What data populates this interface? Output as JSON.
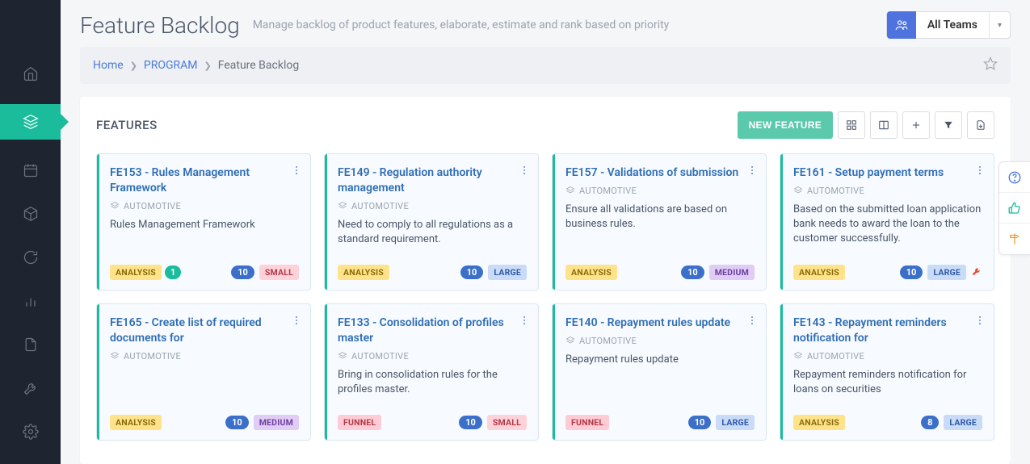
{
  "header": {
    "title": "Feature Backlog",
    "subtitle": "Manage backlog of product features, elaborate, estimate and rank based on priority",
    "team_label": "All Teams"
  },
  "breadcrumb": {
    "home": "Home",
    "program": "PROGRAM",
    "current": "Feature Backlog"
  },
  "panel": {
    "title": "FEATURES",
    "new_button": "NEW FEATURE"
  },
  "colors": {
    "sidebar_bg": "#1e2430",
    "accent": "#1abc9c",
    "link": "#4c7bd9",
    "card_bg": "#f7fbff",
    "card_border": "#d9e6f2"
  },
  "cards": [
    {
      "id": "FE153",
      "title": "FE153 - Rules Management Framework",
      "epic": "AUTOMOTIVE",
      "desc": "Rules Management Framework",
      "stage": "ANALYSIS",
      "stage_style": "analysis",
      "extra_count": "1",
      "count": "10",
      "size": "SMALL",
      "size_style": "small",
      "wrench": false
    },
    {
      "id": "FE149",
      "title": "FE149 - Regulation authority management",
      "epic": "AUTOMOTIVE",
      "desc": "Need to comply to all regulations as a standard requirement.",
      "stage": "ANALYSIS",
      "stage_style": "analysis",
      "count": "10",
      "size": "LARGE",
      "size_style": "large",
      "wrench": false
    },
    {
      "id": "FE157",
      "title": "FE157 - Validations of submission",
      "epic": "AUTOMOTIVE",
      "desc": "Ensure all validations are based on business rules.",
      "stage": "ANALYSIS",
      "stage_style": "analysis",
      "count": "10",
      "size": "MEDIUM",
      "size_style": "medium",
      "wrench": false
    },
    {
      "id": "FE161",
      "title": "FE161 - Setup payment terms",
      "epic": "AUTOMOTIVE",
      "desc": "Based on the submitted loan application bank needs to award the loan to the customer successfully.",
      "stage": "ANALYSIS",
      "stage_style": "analysis",
      "count": "10",
      "size": "LARGE",
      "size_style": "large",
      "wrench": true
    },
    {
      "id": "FE165",
      "title": "FE165 - Create list of required documents for",
      "epic": "AUTOMOTIVE",
      "desc": "",
      "stage": "ANALYSIS",
      "stage_style": "analysis",
      "count": "10",
      "size": "MEDIUM",
      "size_style": "medium",
      "wrench": false
    },
    {
      "id": "FE133",
      "title": "FE133 - Consolidation of profiles master",
      "epic": "AUTOMOTIVE",
      "desc": "Bring in consolidation rules for the profiles master.",
      "stage": "FUNNEL",
      "stage_style": "funnel",
      "count": "10",
      "size": "SMALL",
      "size_style": "small",
      "wrench": false
    },
    {
      "id": "FE140",
      "title": "FE140 - Repayment rules update",
      "epic": "AUTOMOTIVE",
      "desc": "Repayment rules update",
      "stage": "FUNNEL",
      "stage_style": "funnel",
      "count": "10",
      "size": "LARGE",
      "size_style": "large",
      "wrench": false
    },
    {
      "id": "FE143",
      "title": "FE143 - Repayment reminders notification for",
      "epic": "AUTOMOTIVE",
      "desc": "Repayment reminders notification for loans on securities",
      "stage": "ANALYSIS",
      "stage_style": "analysis",
      "count": "8",
      "size": "LARGE",
      "size_style": "large",
      "wrench": false
    }
  ]
}
